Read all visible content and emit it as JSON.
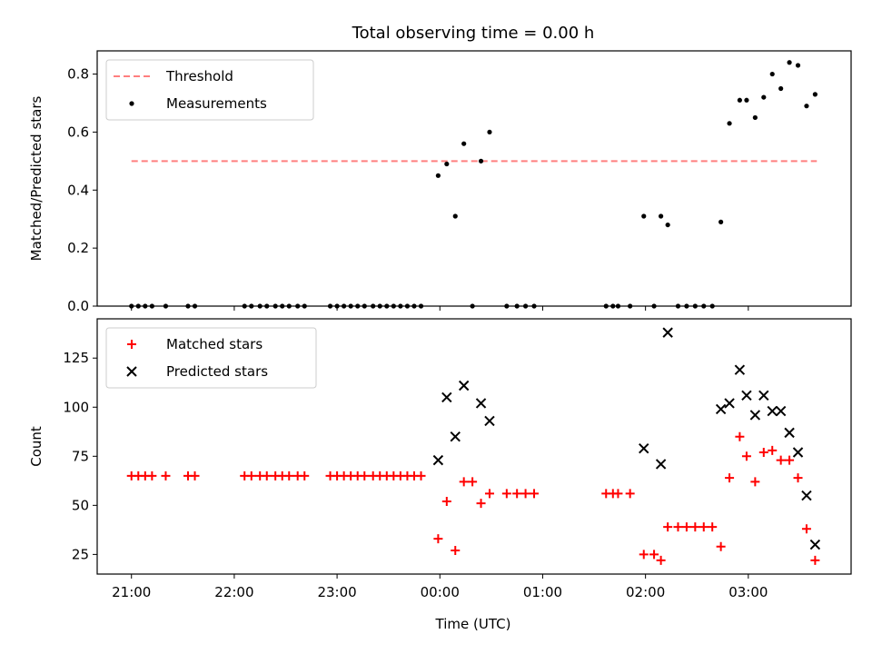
{
  "chart_data": [
    {
      "type": "scatter",
      "title": "Total observing time = 0.00 h",
      "xlabel": "",
      "ylabel": "Matched/Predicted stars",
      "xlim": [
        "20:40",
        "04:00"
      ],
      "ylim": [
        0,
        0.88
      ],
      "xticks": [
        "21:00",
        "22:00",
        "23:00",
        "00:00",
        "01:00",
        "02:00",
        "03:00"
      ],
      "yticks": [
        "0.0",
        "0.2",
        "0.4",
        "0.6",
        "0.8"
      ],
      "legend_position": "upper left",
      "legend": [
        "Threshold",
        "Measurements"
      ],
      "threshold": {
        "name": "Threshold",
        "value": 0.5,
        "x_range": [
          "21:00",
          "03:40"
        ],
        "color": "#ff7f7f"
      },
      "series": [
        {
          "name": "Measurements",
          "color": "#000000",
          "marker": "dot",
          "points": [
            [
              "21:00",
              0
            ],
            [
              "21:04",
              0
            ],
            [
              "21:08",
              0
            ],
            [
              "21:12",
              0
            ],
            [
              "21:20",
              0
            ],
            [
              "21:33",
              0
            ],
            [
              "21:37",
              0
            ],
            [
              "22:06",
              0
            ],
            [
              "22:10",
              0
            ],
            [
              "22:15",
              0
            ],
            [
              "22:19",
              0
            ],
            [
              "22:24",
              0
            ],
            [
              "22:28",
              0
            ],
            [
              "22:32",
              0
            ],
            [
              "22:37",
              0
            ],
            [
              "22:41",
              0
            ],
            [
              "22:56",
              0
            ],
            [
              "23:00",
              0
            ],
            [
              "23:04",
              0
            ],
            [
              "23:08",
              0
            ],
            [
              "23:12",
              0
            ],
            [
              "23:16",
              0
            ],
            [
              "23:21",
              0
            ],
            [
              "23:25",
              0
            ],
            [
              "23:29",
              0
            ],
            [
              "23:33",
              0
            ],
            [
              "23:37",
              0
            ],
            [
              "23:41",
              0
            ],
            [
              "23:45",
              0
            ],
            [
              "23:49",
              0
            ],
            [
              "23:59",
              0.45
            ],
            [
              "00:04",
              0.49
            ],
            [
              "00:09",
              0.31
            ],
            [
              "00:14",
              0.56
            ],
            [
              "00:19",
              0
            ],
            [
              "00:24",
              0.5
            ],
            [
              "00:29",
              0.6
            ],
            [
              "00:39",
              0
            ],
            [
              "00:45",
              0
            ],
            [
              "00:50",
              0
            ],
            [
              "00:55",
              0
            ],
            [
              "01:37",
              0
            ],
            [
              "01:41",
              0
            ],
            [
              "01:44",
              0
            ],
            [
              "01:51",
              0
            ],
            [
              "01:59",
              0.31
            ],
            [
              "02:05",
              0
            ],
            [
              "02:09",
              0.31
            ],
            [
              "02:13",
              0.28
            ],
            [
              "02:19",
              0
            ],
            [
              "02:24",
              0
            ],
            [
              "02:29",
              0
            ],
            [
              "02:34",
              0
            ],
            [
              "02:39",
              0
            ],
            [
              "02:44",
              0.29
            ],
            [
              "02:49",
              0.63
            ],
            [
              "02:55",
              0.71
            ],
            [
              "02:59",
              0.71
            ],
            [
              "03:04",
              0.65
            ],
            [
              "03:09",
              0.72
            ],
            [
              "03:14",
              0.8
            ],
            [
              "03:19",
              0.75
            ],
            [
              "03:24",
              0.84
            ],
            [
              "03:29",
              0.83
            ],
            [
              "03:34",
              0.69
            ],
            [
              "03:39",
              0.73
            ]
          ]
        }
      ]
    },
    {
      "type": "scatter",
      "title": "",
      "xlabel": "Time (UTC)",
      "ylabel": "Count",
      "xlim": [
        "20:40",
        "04:00"
      ],
      "ylim": [
        15,
        145
      ],
      "xticks": [
        "21:00",
        "22:00",
        "23:00",
        "00:00",
        "01:00",
        "02:00",
        "03:00"
      ],
      "yticks": [
        "25",
        "50",
        "75",
        "100",
        "125"
      ],
      "legend_position": "upper left",
      "legend": [
        "Matched stars",
        "Predicted stars"
      ],
      "series": [
        {
          "name": "Matched stars",
          "color": "#ff0000",
          "marker": "plus",
          "points": [
            [
              "21:00",
              65
            ],
            [
              "21:04",
              65
            ],
            [
              "21:08",
              65
            ],
            [
              "21:12",
              65
            ],
            [
              "21:20",
              65
            ],
            [
              "21:33",
              65
            ],
            [
              "21:37",
              65
            ],
            [
              "22:06",
              65
            ],
            [
              "22:10",
              65
            ],
            [
              "22:15",
              65
            ],
            [
              "22:19",
              65
            ],
            [
              "22:24",
              65
            ],
            [
              "22:28",
              65
            ],
            [
              "22:32",
              65
            ],
            [
              "22:37",
              65
            ],
            [
              "22:41",
              65
            ],
            [
              "22:56",
              65
            ],
            [
              "23:00",
              65
            ],
            [
              "23:04",
              65
            ],
            [
              "23:08",
              65
            ],
            [
              "23:12",
              65
            ],
            [
              "23:16",
              65
            ],
            [
              "23:21",
              65
            ],
            [
              "23:25",
              65
            ],
            [
              "23:29",
              65
            ],
            [
              "23:33",
              65
            ],
            [
              "23:37",
              65
            ],
            [
              "23:41",
              65
            ],
            [
              "23:45",
              65
            ],
            [
              "23:49",
              65
            ],
            [
              "23:59",
              33
            ],
            [
              "00:04",
              52
            ],
            [
              "00:09",
              27
            ],
            [
              "00:14",
              62
            ],
            [
              "00:19",
              62
            ],
            [
              "00:24",
              51
            ],
            [
              "00:29",
              56
            ],
            [
              "00:39",
              56
            ],
            [
              "00:45",
              56
            ],
            [
              "00:50",
              56
            ],
            [
              "00:55",
              56
            ],
            [
              "01:37",
              56
            ],
            [
              "01:41",
              56
            ],
            [
              "01:44",
              56
            ],
            [
              "01:51",
              56
            ],
            [
              "01:59",
              25
            ],
            [
              "02:05",
              25
            ],
            [
              "02:09",
              22
            ],
            [
              "02:13",
              39
            ],
            [
              "02:19",
              39
            ],
            [
              "02:24",
              39
            ],
            [
              "02:29",
              39
            ],
            [
              "02:34",
              39
            ],
            [
              "02:39",
              39
            ],
            [
              "02:44",
              29
            ],
            [
              "02:49",
              64
            ],
            [
              "02:55",
              85
            ],
            [
              "02:59",
              75
            ],
            [
              "03:04",
              62
            ],
            [
              "03:09",
              77
            ],
            [
              "03:14",
              78
            ],
            [
              "03:19",
              73
            ],
            [
              "03:24",
              73
            ],
            [
              "03:29",
              64
            ],
            [
              "03:34",
              38
            ],
            [
              "03:39",
              22
            ]
          ]
        },
        {
          "name": "Predicted stars",
          "color": "#000000",
          "marker": "x",
          "points": [
            [
              "23:59",
              73
            ],
            [
              "00:04",
              105
            ],
            [
              "00:09",
              85
            ],
            [
              "00:14",
              111
            ],
            [
              "00:24",
              102
            ],
            [
              "00:29",
              93
            ],
            [
              "01:59",
              79
            ],
            [
              "02:09",
              71
            ],
            [
              "02:13",
              138
            ],
            [
              "02:44",
              99
            ],
            [
              "02:49",
              102
            ],
            [
              "02:55",
              119
            ],
            [
              "02:59",
              106
            ],
            [
              "03:04",
              96
            ],
            [
              "03:09",
              106
            ],
            [
              "03:14",
              98
            ],
            [
              "03:19",
              98
            ],
            [
              "03:24",
              87
            ],
            [
              "03:29",
              77
            ],
            [
              "03:34",
              55
            ],
            [
              "03:39",
              30
            ]
          ]
        }
      ]
    }
  ]
}
